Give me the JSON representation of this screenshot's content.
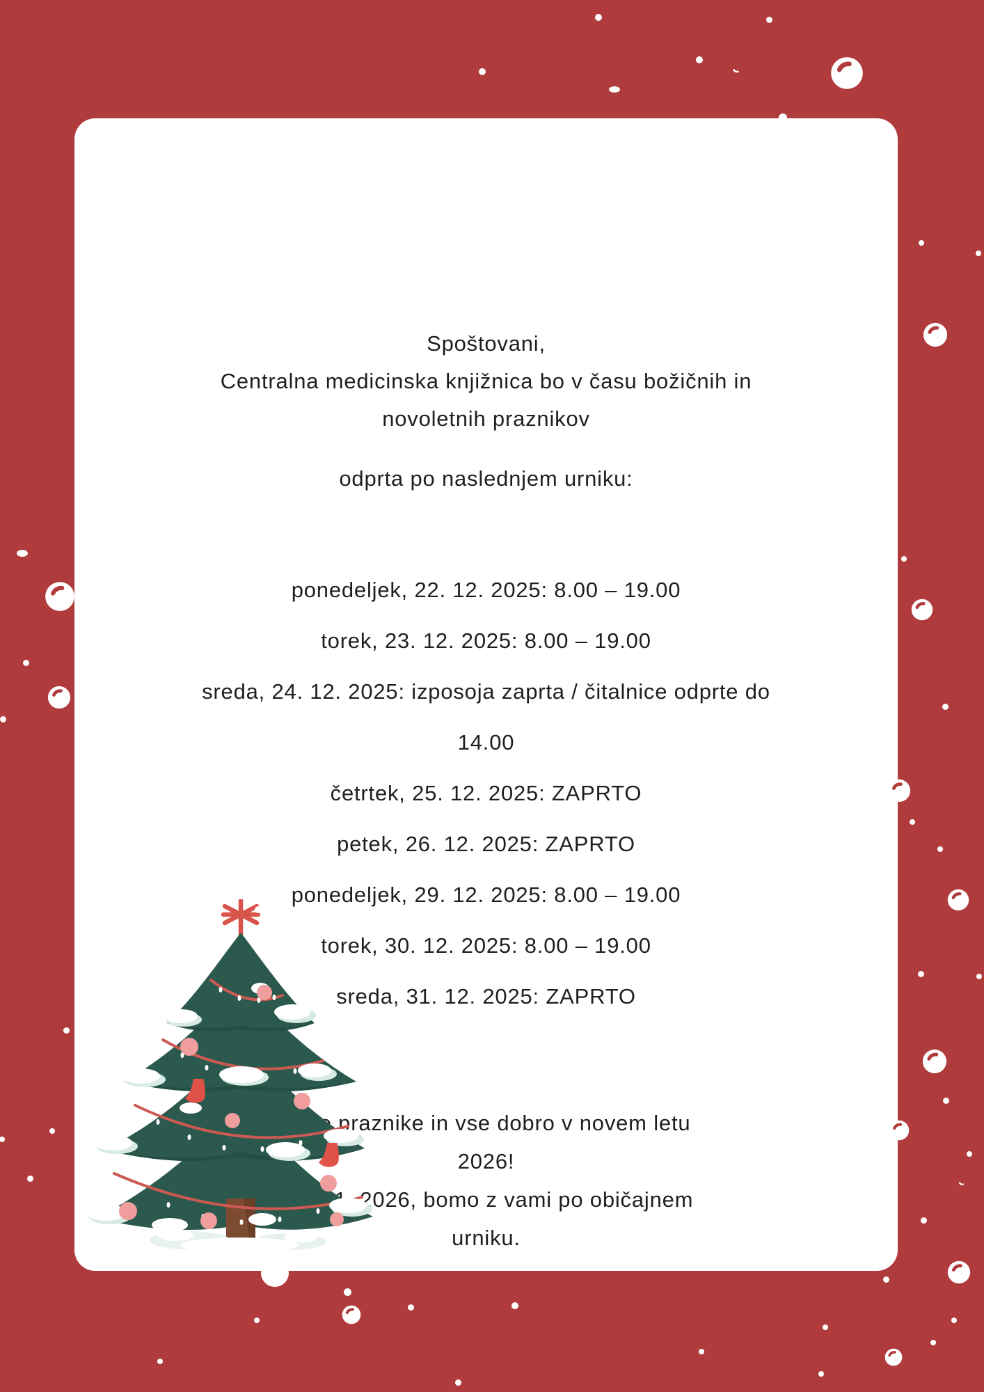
{
  "page": {
    "background_color": "#b03b3d",
    "card_color": "#ffffff",
    "text_color": "#1f1f1f"
  },
  "notice": {
    "greeting": "Spoštovani,",
    "intro_line1": "Centralna medicinska knjižnica bo v času božičnih in",
    "intro_line2": "novoletnih praznikov",
    "schedule_heading": "odprta po naslednjem urniku:",
    "schedule_lines": [
      "ponedeljek, 22. 12. 2025: 8.00 – 19.00",
      "torek, 23. 12. 2025: 8.00 – 19.00",
      "sreda, 24. 12. 2025: izposoja zaprta / čitalnice odprte do",
      "14.00",
      "četrtek, 25. 12. 2025: ZAPRTO",
      "petek, 26. 12. 2025: ZAPRTO",
      "ponedeljek, 29. 12. 2025: 8.00 – 19.00",
      "torek, 30. 12. 2025: 8.00 – 19.00",
      "sreda, 31. 12. 2025: ZAPRTO"
    ],
    "closing_lines": [
      "Lepe praznike in vse dobro v novem letu",
      "2026!",
      "Od 5.1. 2026, bomo z vami po običajnem",
      "urniku."
    ]
  },
  "illustration": {
    "name": "christmas-tree-with-star-garland-and-stockings",
    "colors": {
      "foliage": "#2b594e",
      "snow": "#ffffff",
      "snow_shadow": "#d7eae4",
      "garland": "#cd5a52",
      "ornament": "#ef9e9d",
      "stocking": "#e05148",
      "trunk": "#7c4b31",
      "star": "#d9544b"
    }
  }
}
